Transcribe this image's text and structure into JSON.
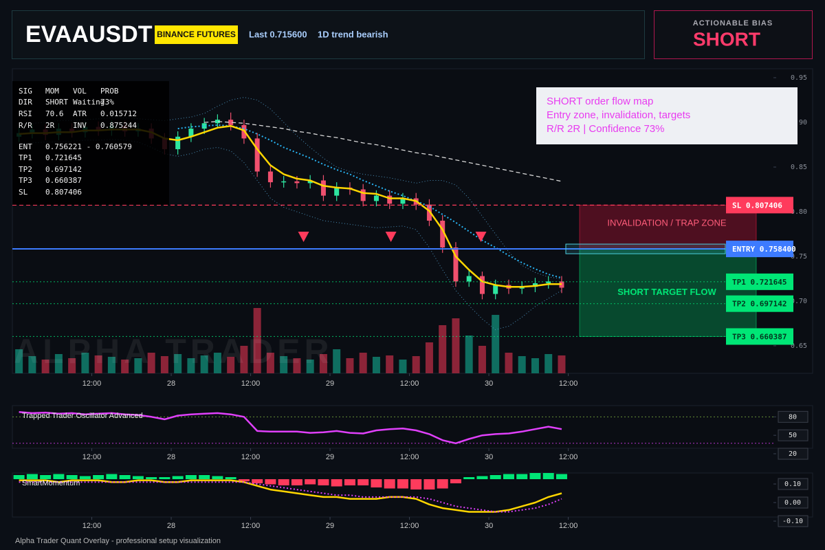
{
  "header": {
    "symbol": "EVAAUSDT",
    "exchange": "BINANCE FUTURES",
    "last": "Last 0.715600",
    "trend": "1D trend bearish"
  },
  "bias": {
    "label": "ACTIONABLE BIAS",
    "value": "SHORT"
  },
  "info_panel": {
    "rows": [
      [
        "SIG",
        "MOM",
        "VOL",
        "PROB"
      ],
      [
        "DIR",
        "SHORT",
        "Waiting",
        "73%"
      ],
      [
        "RSI",
        "70.6",
        "ATR",
        "0.015712"
      ],
      [
        "R/R",
        "2R",
        "INV",
        "0.875244"
      ],
      [
        "ENT",
        "0.756221 - 0.760579"
      ],
      [
        "TP1",
        "0.721645"
      ],
      [
        "TP2",
        "0.697142"
      ],
      [
        "TP3",
        "0.660387"
      ],
      [
        "SL",
        "0.807406"
      ]
    ]
  },
  "callout": {
    "lines": [
      "SHORT order flow map",
      "Entry zone, invalidation, targets",
      "R/R 2R | Confidence 73%"
    ]
  },
  "watermark": "ALPHA TRADER",
  "footer": "Alpha Trader Quant Overlay - professional setup visualization",
  "chart_data": [
    {
      "type": "candlestick",
      "x": [
        1,
        3,
        5,
        7,
        9,
        11,
        13,
        15,
        17,
        19,
        21,
        23,
        25,
        27,
        29,
        31,
        33,
        35,
        37,
        39,
        41,
        43,
        45,
        47,
        49,
        51,
        53,
        55,
        57,
        59,
        61,
        63,
        65,
        67,
        69,
        71,
        73,
        75,
        77,
        79,
        81,
        83
      ],
      "xlim": [
        0,
        115
      ],
      "xticks": [
        {
          "value": 12,
          "label": "12:00"
        },
        {
          "value": 24,
          "label": "28"
        },
        {
          "value": 36,
          "label": "12:00"
        },
        {
          "value": 48,
          "label": "29"
        },
        {
          "value": 60,
          "label": "12:00"
        },
        {
          "value": 72,
          "label": "30"
        },
        {
          "value": 84,
          "label": "12:00"
        }
      ],
      "ylim": [
        0.6192,
        0.96
      ],
      "yticks": [
        0.65,
        {
          "value": 0.7,
          "label": "0.70"
        },
        0.75,
        {
          "value": 0.8,
          "label": "0.80"
        },
        0.85,
        {
          "value": 0.9,
          "label": "0.90"
        },
        0.95
      ],
      "open": [
        0.884,
        0.888,
        0.892,
        0.886,
        0.893,
        0.889,
        0.895,
        0.891,
        0.896,
        0.89,
        0.893,
        0.882,
        0.87,
        0.884,
        0.893,
        0.899,
        0.903,
        0.897,
        0.882,
        0.845,
        0.833,
        0.834,
        0.832,
        0.835,
        0.818,
        0.827,
        0.825,
        0.812,
        0.818,
        0.809,
        0.815,
        0.808,
        0.79,
        0.76,
        0.722,
        0.728,
        0.708,
        0.718,
        0.714,
        0.716,
        0.72,
        0.722
      ],
      "high": [
        0.894,
        0.898,
        0.898,
        0.899,
        0.899,
        0.901,
        0.901,
        0.902,
        0.902,
        0.899,
        0.899,
        0.888,
        0.89,
        0.899,
        0.905,
        0.909,
        0.911,
        0.903,
        0.888,
        0.851,
        0.84,
        0.84,
        0.841,
        0.841,
        0.833,
        0.833,
        0.831,
        0.824,
        0.824,
        0.821,
        0.821,
        0.814,
        0.796,
        0.766,
        0.734,
        0.733,
        0.724,
        0.724,
        0.722,
        0.726,
        0.728,
        0.728
      ],
      "low": [
        0.878,
        0.882,
        0.88,
        0.88,
        0.883,
        0.883,
        0.885,
        0.885,
        0.884,
        0.884,
        0.876,
        0.864,
        0.864,
        0.878,
        0.887,
        0.893,
        0.891,
        0.876,
        0.839,
        0.827,
        0.827,
        0.826,
        0.826,
        0.812,
        0.812,
        0.819,
        0.806,
        0.806,
        0.803,
        0.803,
        0.802,
        0.784,
        0.754,
        0.716,
        0.716,
        0.702,
        0.702,
        0.708,
        0.708,
        0.71,
        0.714,
        0.709
      ],
      "close": [
        0.888,
        0.892,
        0.886,
        0.893,
        0.889,
        0.895,
        0.891,
        0.896,
        0.89,
        0.893,
        0.882,
        0.87,
        0.884,
        0.893,
        0.899,
        0.903,
        0.897,
        0.882,
        0.845,
        0.833,
        0.834,
        0.832,
        0.835,
        0.818,
        0.827,
        0.825,
        0.812,
        0.818,
        0.809,
        0.815,
        0.808,
        0.79,
        0.76,
        0.722,
        0.728,
        0.708,
        0.718,
        0.714,
        0.716,
        0.72,
        0.722,
        0.715
      ],
      "up_color": "#2ee6a0",
      "down_color": "#f0506e",
      "volume": [
        35,
        25,
        20,
        28,
        22,
        30,
        26,
        24,
        20,
        22,
        30,
        25,
        28,
        22,
        26,
        30,
        24,
        40,
        95,
        30,
        25,
        22,
        20,
        28,
        35,
        22,
        30,
        24,
        26,
        20,
        25,
        45,
        70,
        80,
        55,
        40,
        85,
        30,
        25,
        22,
        28,
        26
      ],
      "volume_up_color": "#0f6e60",
      "volume_down_color": "#8c2438",
      "lines": [
        {
          "color": "#4a8fb8",
          "style": "thin-dotted",
          "values": [
            0.898,
            0.899,
            0.9,
            0.902,
            0.902,
            0.903,
            0.904,
            0.905,
            0.905,
            0.904,
            0.903,
            0.902,
            0.904,
            0.906,
            0.91,
            0.918,
            0.925,
            0.928,
            0.925,
            0.915,
            0.9,
            0.885,
            0.872,
            0.86,
            0.85,
            0.845,
            0.842,
            0.84,
            0.838,
            0.835,
            0.832,
            0.835,
            0.835,
            0.83,
            0.815,
            0.795,
            0.775,
            0.755,
            0.74,
            0.732,
            0.727,
            0.725
          ]
        },
        {
          "color": "#4a8fb8",
          "style": "thin-dotted",
          "values": [
            0.876,
            0.877,
            0.878,
            0.878,
            0.879,
            0.88,
            0.88,
            0.881,
            0.88,
            0.878,
            0.872,
            0.865,
            0.862,
            0.865,
            0.87,
            0.872,
            0.868,
            0.855,
            0.835,
            0.815,
            0.805,
            0.8,
            0.795,
            0.79,
            0.788,
            0.786,
            0.784,
            0.782,
            0.783,
            0.784,
            0.78,
            0.76,
            0.735,
            0.712,
            0.695,
            0.68,
            0.668,
            0.672,
            0.682,
            0.694,
            0.703,
            0.712
          ]
        },
        {
          "color": "#d8d8d8",
          "style": "dashed",
          "values": [
            null,
            null,
            null,
            null,
            null,
            null,
            null,
            null,
            null,
            null,
            null,
            null,
            null,
            null,
            0.9,
            0.901,
            0.9,
            0.899,
            0.897,
            0.895,
            0.893,
            0.89,
            0.888,
            0.885,
            0.883,
            0.88,
            0.877,
            0.875,
            0.872,
            0.869,
            0.866,
            0.864,
            0.861,
            0.858,
            0.855,
            0.852,
            0.849,
            0.846,
            0.843,
            0.84,
            0.837,
            0.834
          ]
        },
        {
          "color": "#29b6f6",
          "style": "dotted",
          "values": [
            null,
            null,
            null,
            null,
            null,
            null,
            null,
            null,
            null,
            null,
            null,
            null,
            0.893,
            0.895,
            0.896,
            0.897,
            0.896,
            0.893,
            0.887,
            0.88,
            0.872,
            0.866,
            0.86,
            0.853,
            0.847,
            0.842,
            0.835,
            0.829,
            0.823,
            0.818,
            0.812,
            0.806,
            0.797,
            0.788,
            0.778,
            0.768,
            0.76,
            0.751,
            0.743,
            0.736,
            0.73,
            0.726
          ]
        },
        {
          "color": "#ffd600",
          "style": "solid",
          "values": [
            0.887,
            0.888,
            0.888,
            0.889,
            0.889,
            0.891,
            0.891,
            0.892,
            0.892,
            0.892,
            0.889,
            0.882,
            0.88,
            0.884,
            0.889,
            0.894,
            0.896,
            0.891,
            0.87,
            0.852,
            0.842,
            0.837,
            0.835,
            0.829,
            0.827,
            0.826,
            0.821,
            0.82,
            0.815,
            0.815,
            0.812,
            0.801,
            0.78,
            0.75,
            0.735,
            0.722,
            0.718,
            0.716,
            0.716,
            0.717,
            0.719,
            0.719
          ]
        }
      ],
      "signals": {
        "color": "#ff3b5c",
        "x": [
          44,
          57.2,
          70.8
        ],
        "y": [
          0.7715,
          0.7715,
          0.7715
        ]
      },
      "levels": [
        {
          "label": "SL 0.807406",
          "value": 0.807406,
          "color": "#ff3b5c",
          "text_color": "#ffffff",
          "style": "dashed"
        },
        {
          "label": "ENTRY 0.758400",
          "value": 0.7584,
          "color": "#3d7bff",
          "text_color": "#ffffff",
          "style": "solid"
        },
        {
          "label": "TP1 0.721645",
          "value": 0.721645,
          "color": "#00e676",
          "text_color": "#04361f",
          "style": "dotted"
        },
        {
          "label": "TP2 0.697142",
          "value": 0.697142,
          "color": "#00e676",
          "text_color": "#04361f",
          "style": "dotted"
        },
        {
          "label": "TP3 0.660387",
          "value": 0.660387,
          "color": "#00e676",
          "text_color": "#04361f",
          "style": "dotted"
        }
      ],
      "zones": [
        {
          "label": "INVALIDATION / TRAP ZONE",
          "from": 0.807406,
          "to": 0.7584,
          "color": "#ff1744",
          "text_color": "#ff5c7a"
        },
        {
          "label": "SHORT TARGET FLOW",
          "from": 0.7584,
          "to": 0.660387,
          "color": "#00e676",
          "text_color": "#00e676"
        }
      ]
    },
    {
      "type": "line",
      "title": "Trapped Trader Oscillator Advanced",
      "x": [
        1,
        3,
        5,
        7,
        9,
        11,
        13,
        15,
        17,
        19,
        21,
        23,
        25,
        27,
        29,
        31,
        33,
        35,
        37,
        39,
        41,
        43,
        45,
        47,
        49,
        51,
        53,
        55,
        57,
        59,
        61,
        63,
        65,
        67,
        69,
        71,
        73,
        75,
        77,
        79,
        81,
        83
      ],
      "xlim": [
        0,
        115
      ],
      "xticks": [
        {
          "value": 12,
          "label": "12:00"
        },
        {
          "value": 24,
          "label": "28"
        },
        {
          "value": 36,
          "label": "12:00"
        },
        {
          "value": 48,
          "label": "29"
        },
        {
          "value": 60,
          "label": "12:00"
        },
        {
          "value": 72,
          "label": "30"
        },
        {
          "value": 84,
          "label": "12:00"
        }
      ],
      "ylim": [
        20,
        96
      ],
      "yticks": [
        20,
        50,
        80
      ],
      "color": "#e040fb",
      "values": [
        88,
        86,
        87,
        85,
        86,
        84,
        85,
        86,
        84,
        83,
        80,
        76,
        82,
        84,
        85,
        86,
        84,
        80,
        57,
        56,
        56,
        56,
        54,
        55,
        57,
        54,
        53,
        58,
        60,
        61,
        58,
        52,
        42,
        37,
        44,
        50,
        52,
        53,
        56,
        60,
        64,
        60
      ],
      "ref_lines": [
        {
          "value": 80,
          "color": "#7cb342"
        },
        {
          "value": 37,
          "color": "#e040fb"
        }
      ]
    },
    {
      "type": "momentum",
      "title": "SmartMomentum",
      "x": [
        1,
        3,
        5,
        7,
        9,
        11,
        13,
        15,
        17,
        19,
        21,
        23,
        25,
        27,
        29,
        31,
        33,
        35,
        37,
        39,
        41,
        43,
        45,
        47,
        49,
        51,
        53,
        55,
        57,
        59,
        61,
        63,
        65,
        67,
        69,
        71,
        73,
        75,
        77,
        79,
        81,
        83
      ],
      "xlim": [
        0,
        115
      ],
      "xticks": [
        {
          "value": 12,
          "label": "12:00"
        },
        {
          "value": 24,
          "label": "28"
        },
        {
          "value": 36,
          "label": "12:00"
        },
        {
          "value": 48,
          "label": "29"
        },
        {
          "value": 60,
          "label": "12:00"
        },
        {
          "value": 72,
          "label": "30"
        },
        {
          "value": 84,
          "label": "12:00"
        }
      ],
      "ylim": [
        -0.1,
        0.15
      ],
      "yticks": [
        {
          "value": -0.1,
          "label": "-0.10"
        },
        {
          "value": 0,
          "label": "0.00"
        },
        {
          "value": 0.1,
          "label": "0.10"
        }
      ],
      "histogram": {
        "up_color": "#00e676",
        "down_color": "#ff3b5c",
        "values": [
          0.4,
          0.5,
          0.4,
          0.5,
          0.4,
          0.3,
          0.4,
          0.5,
          0.4,
          0.3,
          0.2,
          0.2,
          0.3,
          0.4,
          0.4,
          0.3,
          0.2,
          -0.2,
          -0.4,
          -0.5,
          -0.6,
          -0.6,
          -0.5,
          -0.6,
          -0.7,
          -0.6,
          -0.6,
          -0.8,
          -0.9,
          -0.9,
          -1.0,
          -1.0,
          -0.9,
          -0.4,
          0.2,
          0.3,
          0.4,
          0.5,
          0.5,
          0.6,
          0.6,
          0.5
        ]
      },
      "series": [
        {
          "color": "#ffd600",
          "style": "solid",
          "values": [
            0.12,
            0.12,
            0.12,
            0.11,
            0.12,
            0.12,
            0.12,
            0.11,
            0.11,
            0.12,
            0.12,
            0.11,
            0.11,
            0.12,
            0.12,
            0.12,
            0.12,
            0.11,
            0.09,
            0.07,
            0.06,
            0.05,
            0.04,
            0.03,
            0.03,
            0.02,
            0.02,
            0.02,
            0.03,
            0.03,
            0.02,
            -0.01,
            -0.03,
            -0.04,
            -0.05,
            -0.05,
            -0.05,
            -0.04,
            -0.02,
            0,
            0.03,
            0.05
          ]
        },
        {
          "color": "#e040fb",
          "style": "dashed",
          "values": [
            0.11,
            0.11,
            0.11,
            0.11,
            0.11,
            0.11,
            0.11,
            0.11,
            0.11,
            0.11,
            0.11,
            0.11,
            0.11,
            0.11,
            0.11,
            0.11,
            0.11,
            0.11,
            0.1,
            0.09,
            0.08,
            0.07,
            0.06,
            0.05,
            0.04,
            0.04,
            0.03,
            0.03,
            0.03,
            0.03,
            0.03,
            0.02,
            0,
            -0.02,
            -0.03,
            -0.04,
            -0.05,
            -0.05,
            -0.04,
            -0.03,
            -0.01,
            0.02
          ]
        }
      ]
    }
  ]
}
